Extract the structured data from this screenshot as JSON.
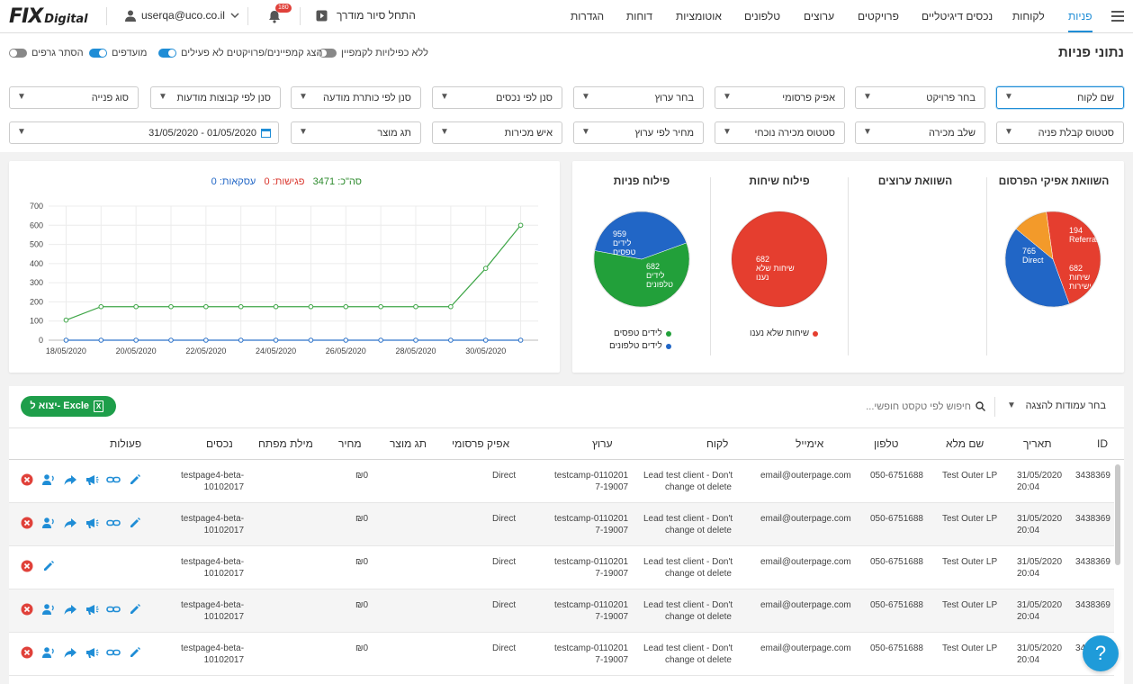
{
  "brand": {
    "logo_main": "FIX",
    "logo_sub": "Digital"
  },
  "topbar": {
    "user_email": "userqa@uco.co.il",
    "notif_count": "180",
    "tour_label": "התחל סיור מודרך",
    "nav": [
      "פניות",
      "לקוחות",
      "נכסים דיגיטליים",
      "פרויקטים",
      "ערוצים",
      "טלפונים",
      "אוטומציות",
      "דוחות",
      "הגדרות"
    ]
  },
  "header": {
    "title": "נתוני פניות",
    "toggles": [
      {
        "label": "ללא כפילויות לקמפיין",
        "on": false
      },
      {
        "label": "הצג קמפיינים/פרויקטים לא פעילים",
        "on": true
      },
      {
        "label": "מועדפים",
        "on": true
      },
      {
        "label": "הסתר גרפים",
        "on": false
      }
    ]
  },
  "filters": {
    "row1": [
      "שם לקוח",
      "בחר פרויקט",
      "אפיק פרסומי",
      "בחר ערוץ",
      "סנן לפי נכסים",
      "סנן לפי כותרת מודעה",
      "סנן לפי קבוצות מודעות",
      "סוג פנייה"
    ],
    "row2": [
      "סטטוס קבלת פניה",
      "שלב מכירה",
      "סטטוס מכירה נוכחי",
      "מחיר לפי ערוץ",
      "איש מכירות",
      "תג מוצר"
    ],
    "date_range": "31/05/2020 - 01/05/2020"
  },
  "charts": {
    "ad_channels": {
      "title": "השוואת אפיקי הפרסום"
    },
    "channels": {
      "title": "השוואת ערוצים"
    },
    "calls": {
      "title": "פילוח שיחות"
    },
    "leads": {
      "title": "פילוח פניות"
    },
    "stats": {
      "total_label": "סה\"כ:",
      "total": "3471",
      "meetings_label": "פגישות:",
      "meetings": "0",
      "deals_label": "עסקאות:",
      "deals": "0"
    }
  },
  "chart_data": [
    {
      "type": "pie",
      "title": "השוואת אפיקי הפרסום",
      "slices": [
        {
          "name": "Direct",
          "value": 765,
          "color": "#e53e2f"
        },
        {
          "name": "שיחות ישירות",
          "value": 682,
          "color": "#2166c6"
        },
        {
          "name": "Referral",
          "value": 194,
          "color": "#f39a2a"
        }
      ]
    },
    {
      "type": "pie",
      "title": "פילוח שיחות",
      "slices": [
        {
          "name": "שיחות שלא נענו",
          "value": 682,
          "color": "#e53e2f"
        }
      ],
      "legend": [
        {
          "name": "שיחות שלא נענו",
          "color": "#e53e2f"
        }
      ]
    },
    {
      "type": "pie",
      "title": "פילוח פניות",
      "slices": [
        {
          "name": "לידים טפסים",
          "value": 959,
          "color": "#22a03a"
        },
        {
          "name": "לידים טלפונים",
          "value": 682,
          "color": "#2166c6"
        }
      ],
      "legend": [
        {
          "name": "לידים טפסים",
          "color": "#22a03a"
        },
        {
          "name": "לידים טלפונים",
          "color": "#2166c6"
        }
      ]
    },
    {
      "type": "line",
      "x": [
        "18/05/2020",
        "19/05/2020",
        "20/05/2020",
        "21/05/2020",
        "22/05/2020",
        "23/05/2020",
        "24/05/2020",
        "25/05/2020",
        "26/05/2020",
        "27/05/2020",
        "28/05/2020",
        "29/05/2020",
        "30/05/2020",
        "31/05/2020"
      ],
      "xticks": [
        "18/05/2020",
        "20/05/2020",
        "22/05/2020",
        "24/05/2020",
        "26/05/2020",
        "28/05/2020",
        "30/05/2020"
      ],
      "ylim": [
        0,
        700
      ],
      "yticks": [
        0,
        100,
        200,
        300,
        400,
        500,
        600,
        700
      ],
      "grid": true,
      "series": [
        {
          "color": "#3fa648",
          "values": [
            105,
            175,
            175,
            175,
            175,
            175,
            175,
            175,
            175,
            175,
            175,
            175,
            375,
            600
          ]
        },
        {
          "color": "#2e73c9",
          "values": [
            0,
            0,
            0,
            0,
            0,
            0,
            0,
            0,
            0,
            0,
            0,
            0,
            0,
            0
          ]
        }
      ]
    }
  ],
  "table": {
    "export_label": "יצוא ל- Excle",
    "search_placeholder": "חיפוש לפי טקסט חופשי...",
    "columns_label": "בחר עמודות להצגה",
    "headers": [
      "ID",
      "תאריך",
      "שם מלא",
      "טלפון",
      "אימייל",
      "לקוח",
      "ערוץ",
      "אפיק פרסומי",
      "תג מוצר",
      "מחיר",
      "מילת מפתח",
      "נכסים",
      "פעולות"
    ],
    "rows": [
      {
        "id": "3438369",
        "date1": "31/05/2020",
        "date2": "20:04",
        "name": "Test Outer LP",
        "phone": "050-6751688",
        "email": "email@outerpage.com",
        "client1": "Lead test client - Don't",
        "client2": "change ot delete",
        "channel1": "testcamp-0110201",
        "channel2": "7-19007",
        "source": "Direct",
        "tag": "",
        "price": "₪0",
        "keyword": "",
        "asset1": "testpage4-beta-",
        "asset2": "10102017",
        "actions": "full"
      },
      {
        "id": "3438369",
        "date1": "31/05/2020",
        "date2": "20:04",
        "name": "Test Outer LP",
        "phone": "050-6751688",
        "email": "email@outerpage.com",
        "client1": "Lead test client - Don't",
        "client2": "change ot delete",
        "channel1": "testcamp-0110201",
        "channel2": "7-19007",
        "source": "Direct",
        "tag": "",
        "price": "₪0",
        "keyword": "",
        "asset1": "testpage4-beta-",
        "asset2": "10102017",
        "actions": "full"
      },
      {
        "id": "3438369",
        "date1": "31/05/2020",
        "date2": "20:04",
        "name": "Test Outer LP",
        "phone": "050-6751688",
        "email": "email@outerpage.com",
        "client1": "Lead test client - Don't",
        "client2": "change ot delete",
        "channel1": "testcamp-0110201",
        "channel2": "7-19007",
        "source": "Direct",
        "tag": "",
        "price": "₪0",
        "keyword": "",
        "asset1": "testpage4-beta-",
        "asset2": "10102017",
        "actions": "short"
      },
      {
        "id": "3438369",
        "date1": "31/05/2020",
        "date2": "20:04",
        "name": "Test Outer LP",
        "phone": "050-6751688",
        "email": "email@outerpage.com",
        "client1": "Lead test client - Don't",
        "client2": "change ot delete",
        "channel1": "testcamp-0110201",
        "channel2": "7-19007",
        "source": "Direct",
        "tag": "",
        "price": "₪0",
        "keyword": "",
        "asset1": "testpage4-beta-",
        "asset2": "10102017",
        "actions": "full"
      },
      {
        "id": "3438369",
        "date1": "31/05/2020",
        "date2": "20:04",
        "name": "Test Outer LP",
        "phone": "050-6751688",
        "email": "email@outerpage.com",
        "client1": "Lead test client - Don't",
        "client2": "change ot delete",
        "channel1": "testcamp-0110201",
        "channel2": "7-19007",
        "source": "Direct",
        "tag": "",
        "price": "₪0",
        "keyword": "",
        "asset1": "testpage4-beta-",
        "asset2": "10102017",
        "actions": "full"
      }
    ]
  },
  "help": {
    "label": "?"
  },
  "icons": {
    "menu": "menu-icon",
    "user": "user-icon",
    "bell": "bell-icon",
    "play": "play-icon",
    "calendar": "calendar-icon",
    "search": "search-icon",
    "excel": "excel-icon",
    "delete": "delete-icon",
    "assign": "assign-user-icon",
    "forward": "forward-icon",
    "megaphone": "megaphone-icon",
    "link": "link-icon",
    "edit": "edit-icon"
  },
  "colors": {
    "accent": "#1f8dd6",
    "excel_green": "#1e9e4a",
    "delete_red": "#e0413a"
  }
}
